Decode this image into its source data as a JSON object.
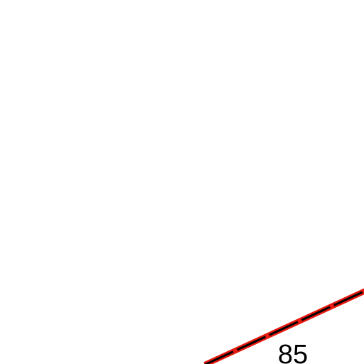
{
  "road": {
    "label": "85"
  }
}
